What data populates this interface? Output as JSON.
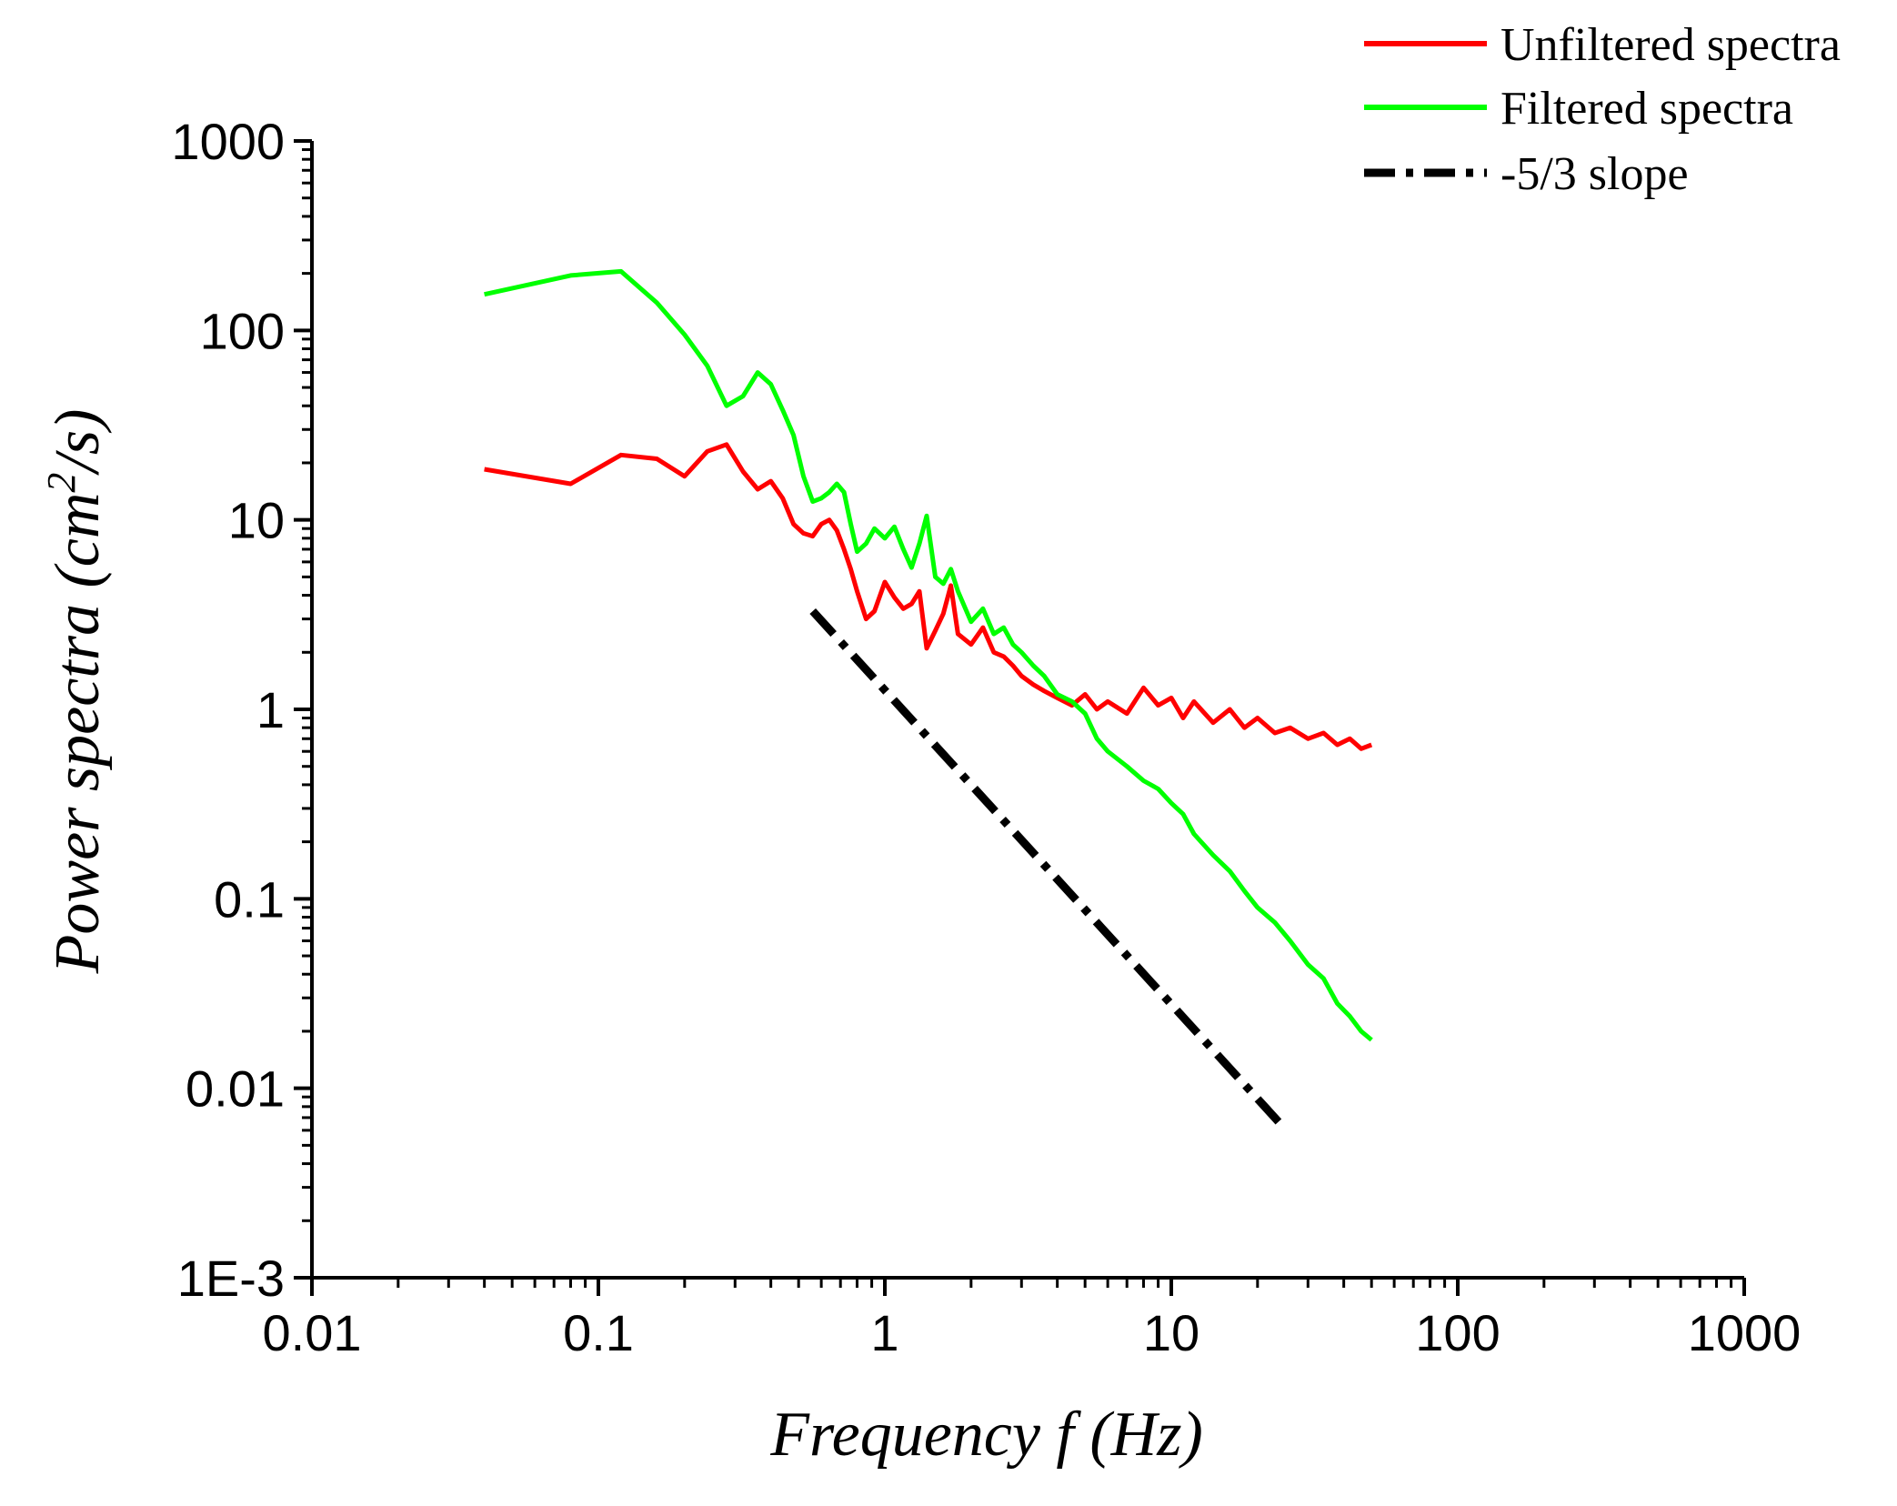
{
  "chart_data": {
    "type": "line",
    "scale": {
      "x": "log",
      "y": "log"
    },
    "xlabel_parts": [
      "Frequency ",
      "f",
      "  (Hz)"
    ],
    "ylabel_parts": [
      "Power spectra (",
      "cm",
      "2",
      "/s)"
    ],
    "xlim": [
      0.01,
      1000
    ],
    "ylim": [
      0.001,
      1000
    ],
    "x_ticks": [
      {
        "value": 0.01,
        "label": "0.01"
      },
      {
        "value": 0.1,
        "label": "0.1"
      },
      {
        "value": 1,
        "label": "1"
      },
      {
        "value": 10,
        "label": "10"
      },
      {
        "value": 100,
        "label": "100"
      },
      {
        "value": 1000,
        "label": "1000"
      }
    ],
    "y_ticks": [
      {
        "value": 1000,
        "label": "1000"
      },
      {
        "value": 100,
        "label": "100"
      },
      {
        "value": 10,
        "label": "10"
      },
      {
        "value": 1,
        "label": "1"
      },
      {
        "value": 0.1,
        "label": "0.1"
      },
      {
        "value": 0.01,
        "label": "0.01"
      },
      {
        "value": 0.001,
        "label": "1E-3"
      }
    ],
    "legend_position": "top-right",
    "series": [
      {
        "name": "Unfiltered spectra",
        "color": "#ff0000",
        "style": "solid",
        "x": [
          0.04,
          0.08,
          0.12,
          0.16,
          0.2,
          0.24,
          0.28,
          0.32,
          0.36,
          0.4,
          0.44,
          0.48,
          0.52,
          0.56,
          0.6,
          0.64,
          0.68,
          0.72,
          0.76,
          0.8,
          0.86,
          0.92,
          1.0,
          1.08,
          1.16,
          1.24,
          1.32,
          1.4,
          1.5,
          1.6,
          1.7,
          1.8,
          2.0,
          2.2,
          2.4,
          2.6,
          2.8,
          3.0,
          3.3,
          3.6,
          4.0,
          4.5,
          5.0,
          5.5,
          6.0,
          7.0,
          8.0,
          9.0,
          10.0,
          11.0,
          12.0,
          14.0,
          16.0,
          18.0,
          20.0,
          23.0,
          26.0,
          30.0,
          34.0,
          38.0,
          42.0,
          46.0,
          50.0
        ],
        "y": [
          18.5,
          15.5,
          22.0,
          21.0,
          17.0,
          23.0,
          25.0,
          18.0,
          14.5,
          16.0,
          13.0,
          9.5,
          8.5,
          8.2,
          9.5,
          10.0,
          8.8,
          7.0,
          5.5,
          4.2,
          3.0,
          3.3,
          4.7,
          3.9,
          3.4,
          3.6,
          4.2,
          2.1,
          2.6,
          3.2,
          4.5,
          2.5,
          2.2,
          2.7,
          2.0,
          1.9,
          1.7,
          1.5,
          1.35,
          1.25,
          1.15,
          1.05,
          1.2,
          1.0,
          1.1,
          0.95,
          1.3,
          1.05,
          1.15,
          0.9,
          1.1,
          0.85,
          1.0,
          0.8,
          0.9,
          0.75,
          0.8,
          0.7,
          0.75,
          0.65,
          0.7,
          0.62,
          0.65
        ]
      },
      {
        "name": "Filtered spectra",
        "color": "#00ff00",
        "style": "solid",
        "x": [
          0.04,
          0.08,
          0.12,
          0.16,
          0.2,
          0.24,
          0.28,
          0.32,
          0.36,
          0.4,
          0.44,
          0.48,
          0.52,
          0.56,
          0.6,
          0.64,
          0.68,
          0.72,
          0.76,
          0.8,
          0.86,
          0.92,
          1.0,
          1.08,
          1.16,
          1.24,
          1.32,
          1.4,
          1.5,
          1.6,
          1.7,
          1.8,
          2.0,
          2.2,
          2.4,
          2.6,
          2.8,
          3.0,
          3.3,
          3.6,
          4.0,
          4.5,
          5.0,
          5.5,
          6.0,
          7.0,
          8.0,
          9.0,
          10.0,
          11.0,
          12.0,
          14.0,
          16.0,
          18.0,
          20.0,
          23.0,
          26.0,
          30.0,
          34.0,
          38.0,
          42.0,
          46.0,
          50.0
        ],
        "y": [
          155,
          195,
          205,
          140,
          95,
          65,
          40,
          45,
          60,
          52,
          38,
          28,
          17,
          12.5,
          13.0,
          14.0,
          15.5,
          14.0,
          9.5,
          6.8,
          7.5,
          9.0,
          8.0,
          9.2,
          7.0,
          5.6,
          7.5,
          10.5,
          5.0,
          4.6,
          5.5,
          4.2,
          2.9,
          3.4,
          2.5,
          2.7,
          2.2,
          2.0,
          1.7,
          1.5,
          1.2,
          1.1,
          0.95,
          0.7,
          0.6,
          0.5,
          0.42,
          0.38,
          0.32,
          0.28,
          0.22,
          0.17,
          0.14,
          0.11,
          0.09,
          0.075,
          0.06,
          0.045,
          0.038,
          0.028,
          0.024,
          0.02,
          0.018
        ]
      },
      {
        "name": "-5/3 slope",
        "color": "#000000",
        "style": "dash-dot",
        "x": [
          0.56,
          24.0
        ],
        "y": [
          3.3,
          0.0065
        ]
      }
    ]
  }
}
